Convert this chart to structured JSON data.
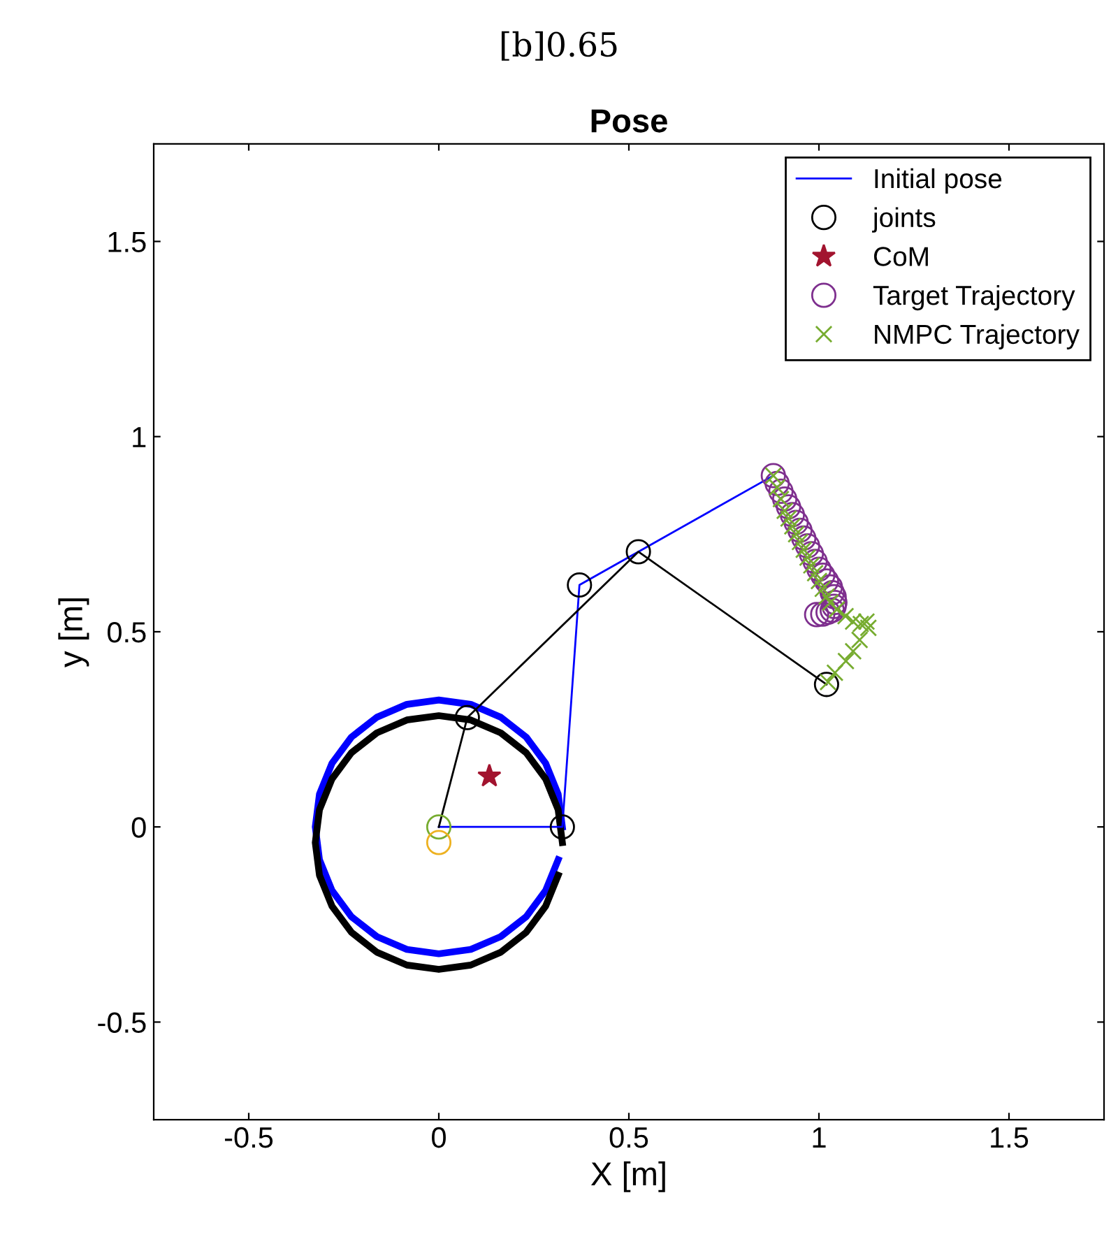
{
  "chart_data": {
    "type": "line",
    "title": "Pose",
    "xlabel": "X [m]",
    "ylabel": "y [m]",
    "annotations": [
      "[b]0.65"
    ],
    "xlim": [
      -0.75,
      1.75
    ],
    "ylim": [
      -0.75,
      1.75
    ],
    "xticks": [
      -0.5,
      0,
      0.5,
      1,
      1.5
    ],
    "yticks": [
      -0.5,
      0,
      0.5,
      1,
      1.5
    ],
    "grid": false,
    "legend": "top right",
    "series": [
      {
        "type": "line",
        "name": "Initial pose",
        "color": "#0000ff",
        "x": [
          0,
          0.325,
          0.37,
          0.525,
          0.88
        ],
        "values": [
          0,
          0,
          0.62,
          0.705,
          0.9
        ]
      },
      {
        "type": "line",
        "color": "#000000",
        "x": [
          0,
          0.075,
          0.525,
          1.02
        ],
        "values": [
          0,
          0.28,
          0.705,
          0.365
        ]
      },
      {
        "type": "scatter",
        "name": "joints",
        "marker": "circle",
        "color": "#000000",
        "x": [
          0.075,
          0.37,
          0.525,
          1.02,
          0.325
        ],
        "values": [
          0.28,
          0.62,
          0.705,
          0.365,
          0
        ]
      },
      {
        "type": "scatter",
        "marker": "circle",
        "color": "#77ac30",
        "x": [
          0
        ],
        "values": [
          0
        ]
      },
      {
        "type": "scatter",
        "marker": "circle",
        "color": "#edb120",
        "x": [
          0
        ],
        "values": [
          -0.04
        ]
      },
      {
        "type": "scatter",
        "name": "CoM",
        "marker": "star",
        "color": "#a2142f",
        "x": [
          0.133
        ],
        "values": [
          0.13
        ]
      },
      {
        "type": "scatter",
        "name": "Target Trajectory",
        "marker": "circle",
        "color": "#7e2f8e",
        "x": [
          0.88,
          0.89,
          0.9,
          0.91,
          0.92,
          0.93,
          0.94,
          0.95,
          0.96,
          0.97,
          0.98,
          0.99,
          1.0,
          1.01,
          1.02,
          1.03,
          1.035,
          1.04,
          1.042,
          1.04,
          1.035,
          1.024,
          1.01,
          0.994
        ],
        "values": [
          0.9,
          0.88,
          0.86,
          0.84,
          0.82,
          0.8,
          0.78,
          0.76,
          0.74,
          0.72,
          0.7,
          0.68,
          0.66,
          0.645,
          0.63,
          0.615,
          0.6,
          0.59,
          0.575,
          0.565,
          0.555,
          0.55,
          0.545,
          0.544
        ]
      },
      {
        "type": "scatter",
        "name": "NMPC Trajectory",
        "marker": "cross",
        "color": "#77ac30",
        "x": [
          0.88,
          0.89,
          0.9,
          0.91,
          0.92,
          0.93,
          0.94,
          0.95,
          0.96,
          0.97,
          0.98,
          0.99,
          1.0,
          1.01,
          1.02,
          1.03,
          1.047,
          1.07,
          1.09,
          1.11,
          1.125,
          1.13,
          1.107,
          1.09,
          1.071,
          1.042,
          1.024
        ],
        "values": [
          0.9,
          0.87,
          0.84,
          0.81,
          0.79,
          0.77,
          0.75,
          0.73,
          0.71,
          0.69,
          0.67,
          0.65,
          0.63,
          0.61,
          0.59,
          0.575,
          0.557,
          0.54,
          0.526,
          0.52,
          0.526,
          0.51,
          0.479,
          0.45,
          0.425,
          0.395,
          0.371
        ]
      },
      {
        "type": "line",
        "color": "#0000ff",
        "x": [
          0.325,
          0.314,
          0.281,
          0.23,
          0.163,
          0.084,
          0,
          -0.084,
          -0.163,
          -0.23,
          -0.281,
          -0.314,
          -0.325,
          -0.314,
          -0.281,
          -0.23,
          -0.163,
          -0.084,
          0,
          0.084,
          0.163,
          0.23,
          0.281,
          0.314
        ],
        "values": [
          0,
          0.084,
          0.163,
          0.23,
          0.281,
          0.314,
          0.325,
          0.314,
          0.281,
          0.23,
          0.163,
          0.084,
          0,
          -0.084,
          -0.163,
          -0.23,
          -0.281,
          -0.314,
          -0.325,
          -0.314,
          -0.281,
          -0.23,
          -0.163,
          -0.084
        ]
      },
      {
        "type": "line",
        "color": "#000000",
        "x": [
          0.325,
          0.314,
          0.281,
          0.23,
          0.163,
          0.084,
          0,
          -0.084,
          -0.163,
          -0.23,
          -0.281,
          -0.314,
          -0.325,
          -0.314,
          -0.281,
          -0.23,
          -0.163,
          -0.084,
          0,
          0.084,
          0.163,
          0.23,
          0.281,
          0.314
        ],
        "values": [
          -0.04,
          0.044,
          0.123,
          0.19,
          0.241,
          0.274,
          0.285,
          0.274,
          0.241,
          0.19,
          0.123,
          0.044,
          -0.04,
          -0.124,
          -0.203,
          -0.27,
          -0.321,
          -0.354,
          -0.365,
          -0.354,
          -0.321,
          -0.27,
          -0.203,
          -0.124
        ]
      }
    ]
  }
}
